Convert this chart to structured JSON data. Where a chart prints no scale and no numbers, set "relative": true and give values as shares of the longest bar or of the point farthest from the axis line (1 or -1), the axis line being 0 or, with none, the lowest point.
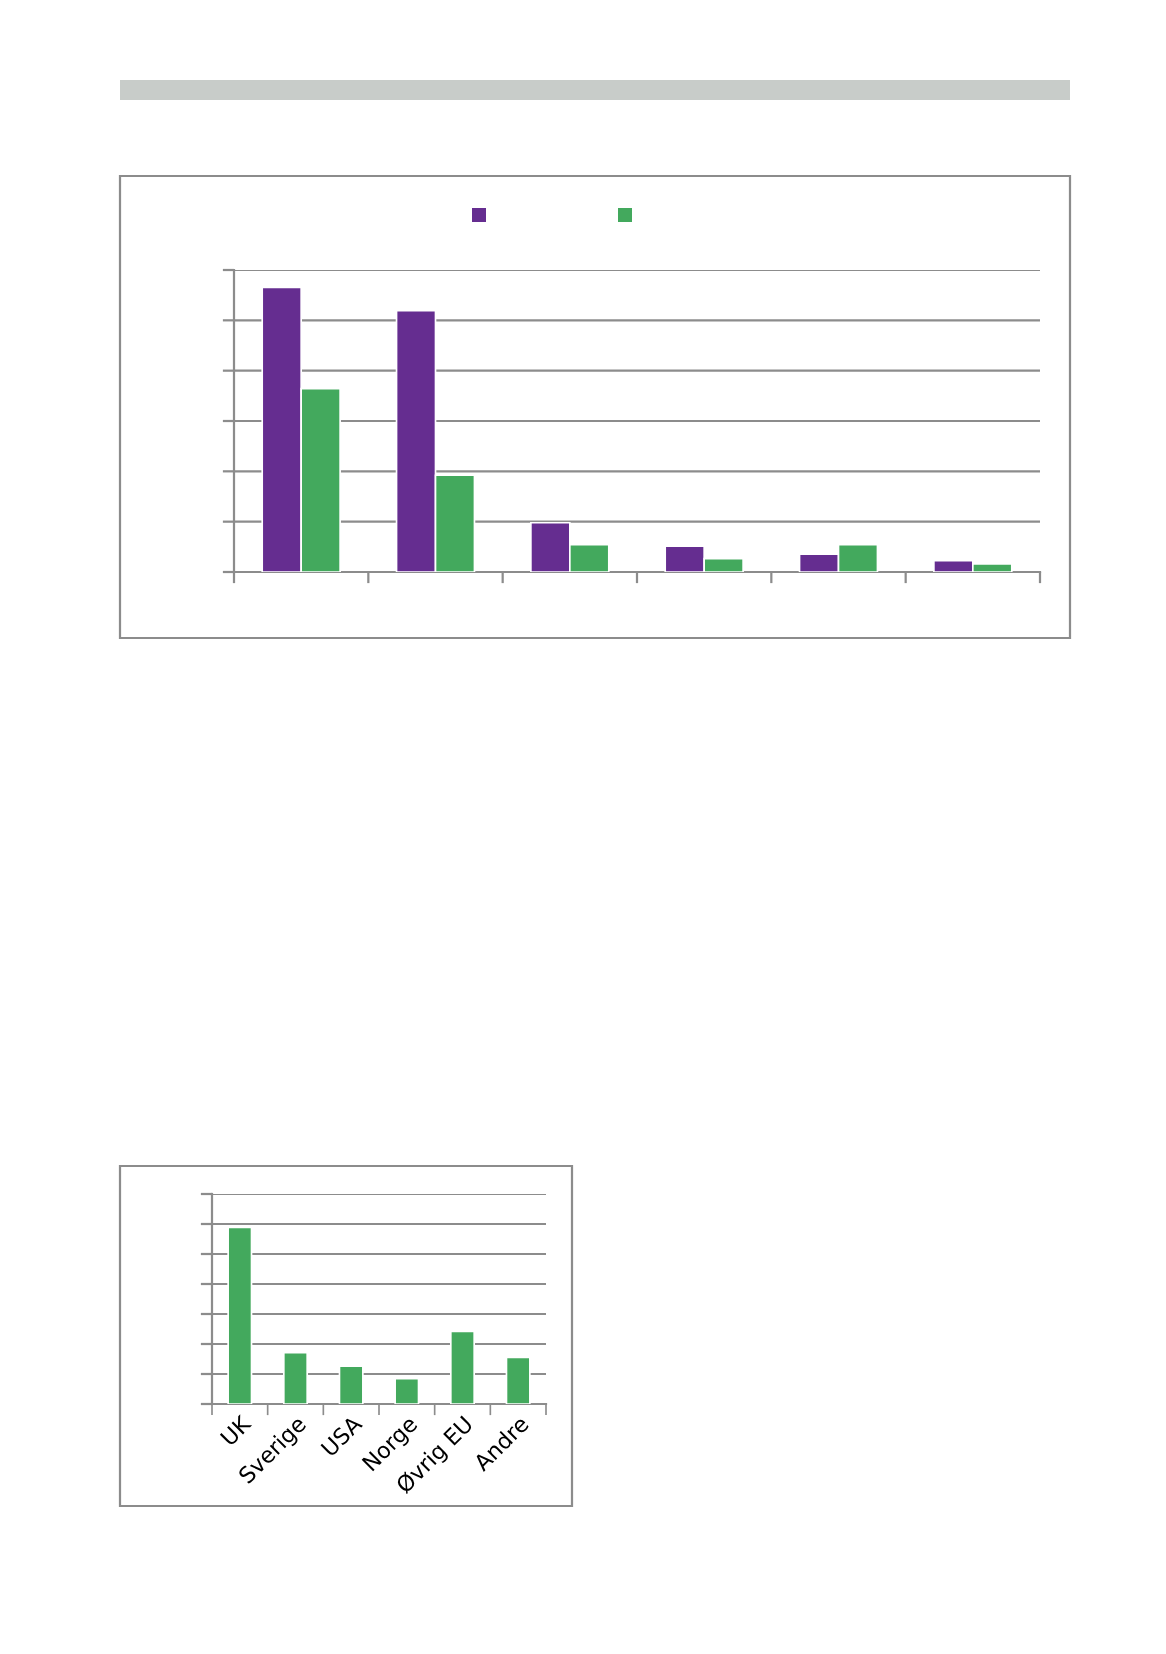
{
  "chart_data": [
    {
      "type": "bar",
      "relative": true,
      "categories": [
        null,
        null,
        null,
        null,
        null,
        null
      ],
      "grid": "y",
      "series": [
        {
          "color": "#652d90",
          "values": [
            1,
            0.918,
            0.173,
            0.091,
            0.063,
            0.04
          ]
        },
        {
          "color": "#43a95d",
          "values": [
            0.644,
            0.34,
            0.096,
            0.047,
            0.096,
            0.028
          ]
        }
      ]
    },
    {
      "type": "bar",
      "relative": true,
      "categories": [
        "UK",
        "Sverige",
        "USA",
        "Norge",
        "Øvrig EU",
        "Andre"
      ],
      "grid": "y",
      "series": [
        {
          "color": "#43a95d",
          "values": [
            1,
            0.291,
            0.215,
            0.143,
            0.411,
            0.264
          ]
        }
      ]
    }
  ]
}
